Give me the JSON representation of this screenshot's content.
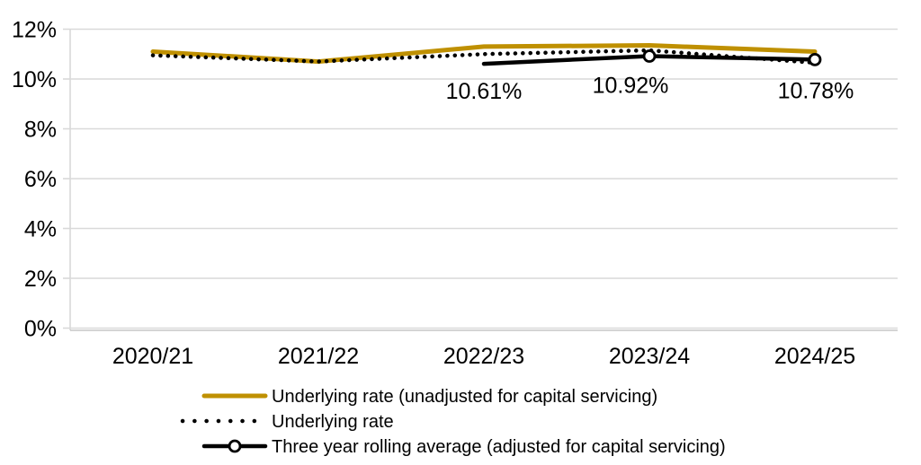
{
  "chart_data": {
    "type": "line",
    "title": "",
    "xlabel": "",
    "ylabel": "",
    "categories": [
      "2020/21",
      "2021/22",
      "2022/23",
      "2023/24",
      "2024/25"
    ],
    "ylim": [
      0,
      12
    ],
    "grid": true,
    "legend_position": "bottom-left",
    "y_ticks": [
      {
        "value": 0,
        "label": "0%"
      },
      {
        "value": 2,
        "label": "2%"
      },
      {
        "value": 4,
        "label": "4%"
      },
      {
        "value": 6,
        "label": "6%"
      },
      {
        "value": 8,
        "label": "8%"
      },
      {
        "value": 10,
        "label": "10%"
      },
      {
        "value": 12,
        "label": "12%"
      }
    ],
    "series": [
      {
        "name": "Underlying rate (unadjusted for capital servicing)",
        "style": "solid",
        "color": "#BF9000",
        "stroke_width": 5,
        "values": [
          11.1,
          10.7,
          11.3,
          11.35,
          11.1
        ],
        "data_labels": [
          null,
          null,
          null,
          null,
          null
        ]
      },
      {
        "name": "Underlying rate",
        "style": "dotted",
        "color": "#000000",
        "stroke_width": 4.5,
        "values": [
          10.95,
          10.7,
          11.0,
          11.15,
          10.65
        ],
        "data_labels": [
          null,
          null,
          null,
          null,
          null
        ]
      },
      {
        "name": "Three year rolling average (adjusted for capital servicing)",
        "style": "solid",
        "color": "#000000",
        "stroke_width": 4.5,
        "marker": "open-circle",
        "marker_indices": [
          3,
          4
        ],
        "values": [
          null,
          null,
          10.61,
          10.92,
          10.78
        ],
        "data_labels": [
          null,
          null,
          "10.61%",
          "10.92%",
          "10.78%"
        ]
      }
    ],
    "colors": {
      "grid": "#D9D9D9",
      "axis": "#C6C6C6",
      "text": "#000000",
      "background": "#FFFFFF",
      "gold_accent": "#BF9000"
    }
  }
}
